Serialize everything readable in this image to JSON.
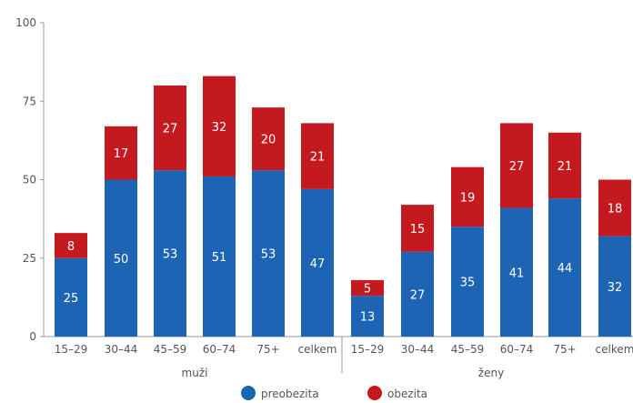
{
  "chart_data": {
    "type": "bar",
    "stacked": true,
    "ylim": [
      0,
      100
    ],
    "yticks": [
      0,
      25,
      50,
      75,
      100
    ],
    "grid": false,
    "legend_position": "bottom",
    "groups": [
      {
        "label": "muži",
        "categories": [
          "15–29",
          "30–44",
          "45–59",
          "60–74",
          "75+",
          "celkem"
        ],
        "preobezita": [
          25,
          50,
          53,
          51,
          53,
          47
        ],
        "obezita": [
          8,
          17,
          27,
          32,
          20,
          21
        ]
      },
      {
        "label": "ženy",
        "categories": [
          "15–29",
          "30–44",
          "45–59",
          "60–74",
          "75+",
          "celkem"
        ],
        "preobezita": [
          13,
          27,
          35,
          41,
          44,
          32
        ],
        "obezita": [
          5,
          15,
          19,
          27,
          21,
          18
        ]
      }
    ],
    "series": [
      {
        "name": "preobezita",
        "color": "#1e64b4"
      },
      {
        "name": "obezita",
        "color": "#c41a1f"
      }
    ]
  }
}
